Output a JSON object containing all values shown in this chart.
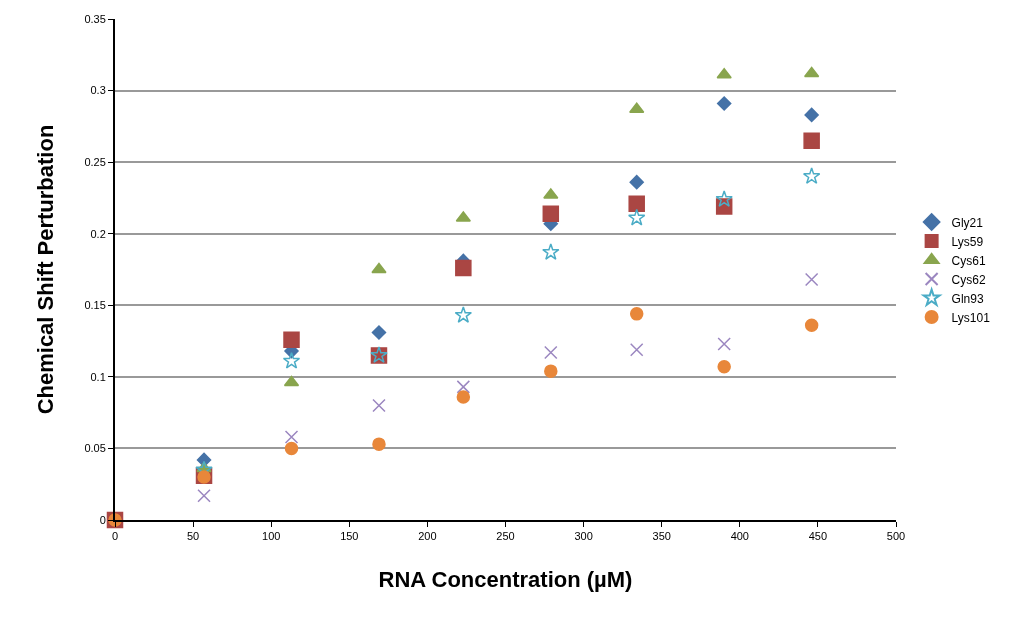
{
  "chart_data": {
    "type": "scatter",
    "xlabel": "RNA Concentration (µM)",
    "ylabel": "Chemical Shift Perturbation",
    "x": [
      0,
      57,
      113,
      169,
      223,
      279,
      334,
      390,
      446
    ],
    "series": [
      {
        "name": "Gly21",
        "color": "#4572a7",
        "marker": "diamond",
        "values": [
          null,
          0.042,
          0.118,
          0.131,
          0.181,
          0.207,
          0.236,
          0.291,
          0.283
        ]
      },
      {
        "name": "Lys59",
        "color": "#aa4643",
        "marker": "square",
        "values": [
          0,
          0.031,
          0.126,
          0.115,
          0.176,
          0.214,
          0.221,
          0.219,
          0.265
        ]
      },
      {
        "name": "Cys61",
        "color": "#89a54e",
        "marker": "triangle",
        "values": [
          null,
          0.036,
          0.096,
          0.175,
          0.211,
          0.227,
          0.287,
          0.311,
          0.312
        ]
      },
      {
        "name": "Cys62",
        "color": "#9b87c0",
        "marker": "cross",
        "values": [
          null,
          0.017,
          0.058,
          0.08,
          0.093,
          0.117,
          0.119,
          0.123,
          0.168
        ]
      },
      {
        "name": "Gln93",
        "color": "#4bacc6",
        "marker": "star",
        "values": [
          null,
          0.035,
          0.111,
          0.115,
          0.143,
          0.187,
          0.211,
          0.224,
          0.24
        ]
      },
      {
        "name": "Lys101",
        "color": "#e8873a",
        "marker": "circle",
        "values": [
          0,
          0.03,
          0.05,
          0.053,
          0.086,
          0.104,
          0.144,
          0.107,
          0.136
        ]
      }
    ],
    "xlim": [
      0,
      500
    ],
    "xticks": [
      0,
      50,
      100,
      150,
      200,
      250,
      300,
      350,
      400,
      450,
      500
    ],
    "ylim": [
      0,
      0.35
    ],
    "yticks": [
      0,
      0.05,
      0.1,
      0.15,
      0.2,
      0.25,
      0.3,
      0.35
    ],
    "grid": "y",
    "legend": "right"
  }
}
